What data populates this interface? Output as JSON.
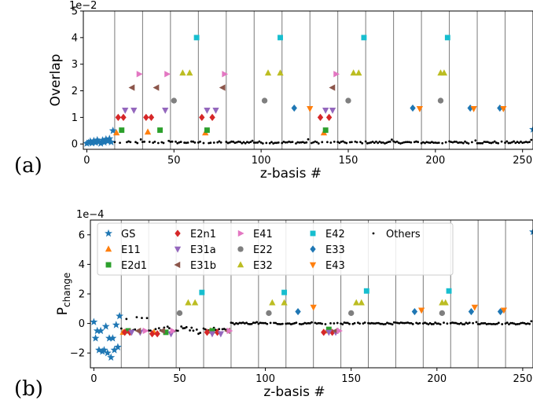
{
  "panel_labels": [
    "(a)",
    "(b)"
  ],
  "legend": {
    "GS": {
      "label": "GS",
      "color": "#1f77b4",
      "marker": "star"
    },
    "E11": {
      "label": "E11",
      "color": "#ff7f0e",
      "marker": "triangle-up"
    },
    "E2d1": {
      "label": "E2d1",
      "color": "#2ca02c",
      "marker": "square"
    },
    "E2n1": {
      "label": "E2n1",
      "color": "#d62728",
      "marker": "diamond"
    },
    "E31a": {
      "label": "E31a",
      "color": "#9467bd",
      "marker": "triangle-down"
    },
    "E31b": {
      "label": "E31b",
      "color": "#8c564b",
      "marker": "triangle-left"
    },
    "E41": {
      "label": "E41",
      "color": "#e377c2",
      "marker": "triangle-right"
    },
    "E22": {
      "label": "E22",
      "color": "#7f7f7f",
      "marker": "circle"
    },
    "E32": {
      "label": "E32",
      "color": "#bcbd22",
      "marker": "triangle-up"
    },
    "E42": {
      "label": "E42",
      "color": "#17becf",
      "marker": "square"
    },
    "E33": {
      "label": "E33",
      "color": "#1f77b4",
      "marker": "diamond"
    },
    "E43": {
      "label": "E43",
      "color": "#ff7f0e",
      "marker": "triangle-down"
    },
    "Others": {
      "label": "Others",
      "color": "#000000",
      "marker": "dot"
    }
  },
  "legend_order": [
    "GS",
    "E11",
    "E2d1",
    "E2n1",
    "E31a",
    "E31b",
    "E41",
    "E22",
    "E32",
    "E42",
    "E33",
    "E43",
    "Others"
  ],
  "chart_data": [
    {
      "type": "scatter",
      "panel": "a",
      "xlabel": "z-basis #",
      "ylabel": "Overlap",
      "offset_text": "1e−2",
      "xlim": [
        -2,
        256
      ],
      "ylim": [
        -0.2,
        5
      ],
      "xticks": [
        0,
        50,
        100,
        150,
        200,
        250
      ],
      "yticks": [
        0,
        1,
        2,
        3,
        4,
        5
      ],
      "vlines": [
        16,
        32,
        48,
        64,
        80,
        96,
        112,
        128,
        144,
        160,
        176,
        192,
        208,
        224,
        240
      ],
      "series": [
        {
          "key": "GS",
          "points": [
            [
              0,
              0.02
            ],
            [
              1,
              0.05
            ],
            [
              2,
              0.1
            ],
            [
              3,
              0.03
            ],
            [
              4,
              0.12
            ],
            [
              5,
              0.05
            ],
            [
              6,
              0.15
            ],
            [
              7,
              0.08
            ],
            [
              8,
              0.02
            ],
            [
              9,
              0.14
            ],
            [
              10,
              0.06
            ],
            [
              11,
              0.18
            ],
            [
              12,
              0.1
            ],
            [
              13,
              0.2
            ],
            [
              14,
              0.07
            ],
            [
              15,
              0.5
            ],
            [
              256,
              0.55
            ]
          ]
        },
        {
          "key": "E11",
          "points": [
            [
              17,
              0.42
            ],
            [
              35,
              0.45
            ],
            [
              68,
              0.42
            ],
            [
              136,
              0.42
            ]
          ]
        },
        {
          "key": "E2d1",
          "points": [
            [
              20,
              0.52
            ],
            [
              42,
              0.52
            ],
            [
              69,
              0.52
            ],
            [
              137,
              0.52
            ]
          ]
        },
        {
          "key": "E2n1",
          "points": [
            [
              18,
              1.0
            ],
            [
              21,
              1.0
            ],
            [
              34,
              1.0
            ],
            [
              37,
              1.0
            ],
            [
              66,
              1.0
            ],
            [
              72,
              1.0
            ],
            [
              134,
              1.0
            ],
            [
              139,
              1.0
            ]
          ]
        },
        {
          "key": "E31a",
          "points": [
            [
              22,
              1.27
            ],
            [
              27,
              1.27
            ],
            [
              45,
              1.27
            ],
            [
              69,
              1.27
            ],
            [
              74,
              1.27
            ],
            [
              137,
              1.27
            ],
            [
              141,
              1.27
            ]
          ]
        },
        {
          "key": "E31b",
          "points": [
            [
              26,
              2.12
            ],
            [
              40,
              2.12
            ],
            [
              78,
              2.12
            ],
            [
              141,
              2.12
            ]
          ]
        },
        {
          "key": "E41",
          "points": [
            [
              30,
              2.63
            ],
            [
              46,
              2.63
            ],
            [
              79,
              2.63
            ],
            [
              143,
              2.63
            ]
          ]
        },
        {
          "key": "E22",
          "points": [
            [
              50,
              1.63
            ],
            [
              102,
              1.63
            ],
            [
              150,
              1.63
            ],
            [
              203,
              1.63
            ]
          ]
        },
        {
          "key": "E32",
          "points": [
            [
              55,
              2.67
            ],
            [
              59,
              2.67
            ],
            [
              104,
              2.67
            ],
            [
              111,
              2.67
            ],
            [
              153,
              2.67
            ],
            [
              156,
              2.67
            ],
            [
              203,
              2.67
            ],
            [
              205,
              2.67
            ]
          ]
        },
        {
          "key": "E42",
          "points": [
            [
              63,
              4.0
            ],
            [
              111,
              4.0
            ],
            [
              159,
              4.0
            ],
            [
              207,
              4.0
            ]
          ]
        },
        {
          "key": "E33",
          "points": [
            [
              119,
              1.35
            ],
            [
              187,
              1.35
            ],
            [
              220,
              1.35
            ],
            [
              237,
              1.35
            ]
          ]
        },
        {
          "key": "E43",
          "points": [
            [
              128,
              1.33
            ],
            [
              191,
              1.33
            ],
            [
              222,
              1.33
            ],
            [
              239,
              1.33
            ]
          ]
        }
      ]
    },
    {
      "type": "scatter",
      "panel": "b",
      "xlabel": "z-basis #",
      "ylabel": "P",
      "ylabel_sub": "change",
      "offset_text": "1e−4",
      "xlim": [
        -2,
        256
      ],
      "ylim": [
        -3,
        7
      ],
      "xticks": [
        0,
        50,
        100,
        150,
        200,
        250
      ],
      "yticks": [
        -2,
        0,
        2,
        4,
        6
      ],
      "vlines": [
        16,
        32,
        48,
        64,
        80,
        96,
        112,
        128,
        144,
        160,
        176,
        192,
        208,
        224,
        240
      ],
      "legend_position": "top",
      "series": [
        {
          "key": "GS",
          "points": [
            [
              0,
              0.1
            ],
            [
              1,
              -1.0
            ],
            [
              2,
              -0.5
            ],
            [
              3,
              -1.8
            ],
            [
              4,
              -0.5
            ],
            [
              5,
              -1.9
            ],
            [
              6,
              -1.8
            ],
            [
              7,
              -0.2
            ],
            [
              8,
              -2.0
            ],
            [
              9,
              -1.0
            ],
            [
              10,
              -2.3
            ],
            [
              11,
              -1.0
            ],
            [
              12,
              -1.8
            ],
            [
              13,
              -0.1
            ],
            [
              14,
              -1.6
            ],
            [
              15,
              0.5
            ],
            [
              256,
              6.2
            ]
          ]
        },
        {
          "key": "E11",
          "points": [
            [
              17,
              -0.6
            ],
            [
              35,
              -0.6
            ],
            [
              68,
              -0.5
            ],
            [
              136,
              -0.5
            ]
          ]
        },
        {
          "key": "E2d1",
          "points": [
            [
              20,
              -0.5
            ],
            [
              42,
              -0.6
            ],
            [
              69,
              -0.5
            ],
            [
              137,
              -0.4
            ]
          ]
        },
        {
          "key": "E2n1",
          "points": [
            [
              18,
              -0.6
            ],
            [
              21,
              -0.6
            ],
            [
              34,
              -0.7
            ],
            [
              37,
              -0.7
            ],
            [
              66,
              -0.6
            ],
            [
              72,
              -0.6
            ],
            [
              134,
              -0.6
            ],
            [
              139,
              -0.6
            ]
          ]
        },
        {
          "key": "E31a",
          "points": [
            [
              22,
              -0.6
            ],
            [
              27,
              -0.6
            ],
            [
              45,
              -0.7
            ],
            [
              69,
              -0.7
            ],
            [
              74,
              -0.7
            ],
            [
              137,
              -0.6
            ],
            [
              141,
              -0.6
            ]
          ]
        },
        {
          "key": "E31b",
          "points": [
            [
              26,
              -0.5
            ],
            [
              40,
              -0.5
            ],
            [
              78,
              -0.5
            ],
            [
              141,
              -0.5
            ]
          ]
        },
        {
          "key": "E41",
          "points": [
            [
              30,
              -0.5
            ],
            [
              46,
              -0.5
            ],
            [
              79,
              -0.5
            ],
            [
              143,
              -0.5
            ]
          ]
        },
        {
          "key": "E22",
          "points": [
            [
              50,
              0.7
            ],
            [
              102,
              0.7
            ],
            [
              150,
              0.7
            ],
            [
              203,
              0.7
            ]
          ]
        },
        {
          "key": "E32",
          "points": [
            [
              55,
              1.4
            ],
            [
              59,
              1.4
            ],
            [
              104,
              1.4
            ],
            [
              111,
              1.4
            ],
            [
              153,
              1.4
            ],
            [
              156,
              1.4
            ],
            [
              203,
              1.4
            ],
            [
              205,
              1.4
            ]
          ]
        },
        {
          "key": "E42",
          "points": [
            [
              63,
              2.1
            ],
            [
              111,
              2.1
            ],
            [
              159,
              2.2
            ],
            [
              207,
              2.2
            ]
          ]
        },
        {
          "key": "E33",
          "points": [
            [
              119,
              0.8
            ],
            [
              187,
              0.8
            ],
            [
              220,
              0.8
            ],
            [
              237,
              0.8
            ]
          ]
        },
        {
          "key": "E43",
          "points": [
            [
              128,
              1.1
            ],
            [
              191,
              0.9
            ],
            [
              222,
              1.1
            ],
            [
              239,
              0.9
            ]
          ]
        }
      ]
    }
  ]
}
